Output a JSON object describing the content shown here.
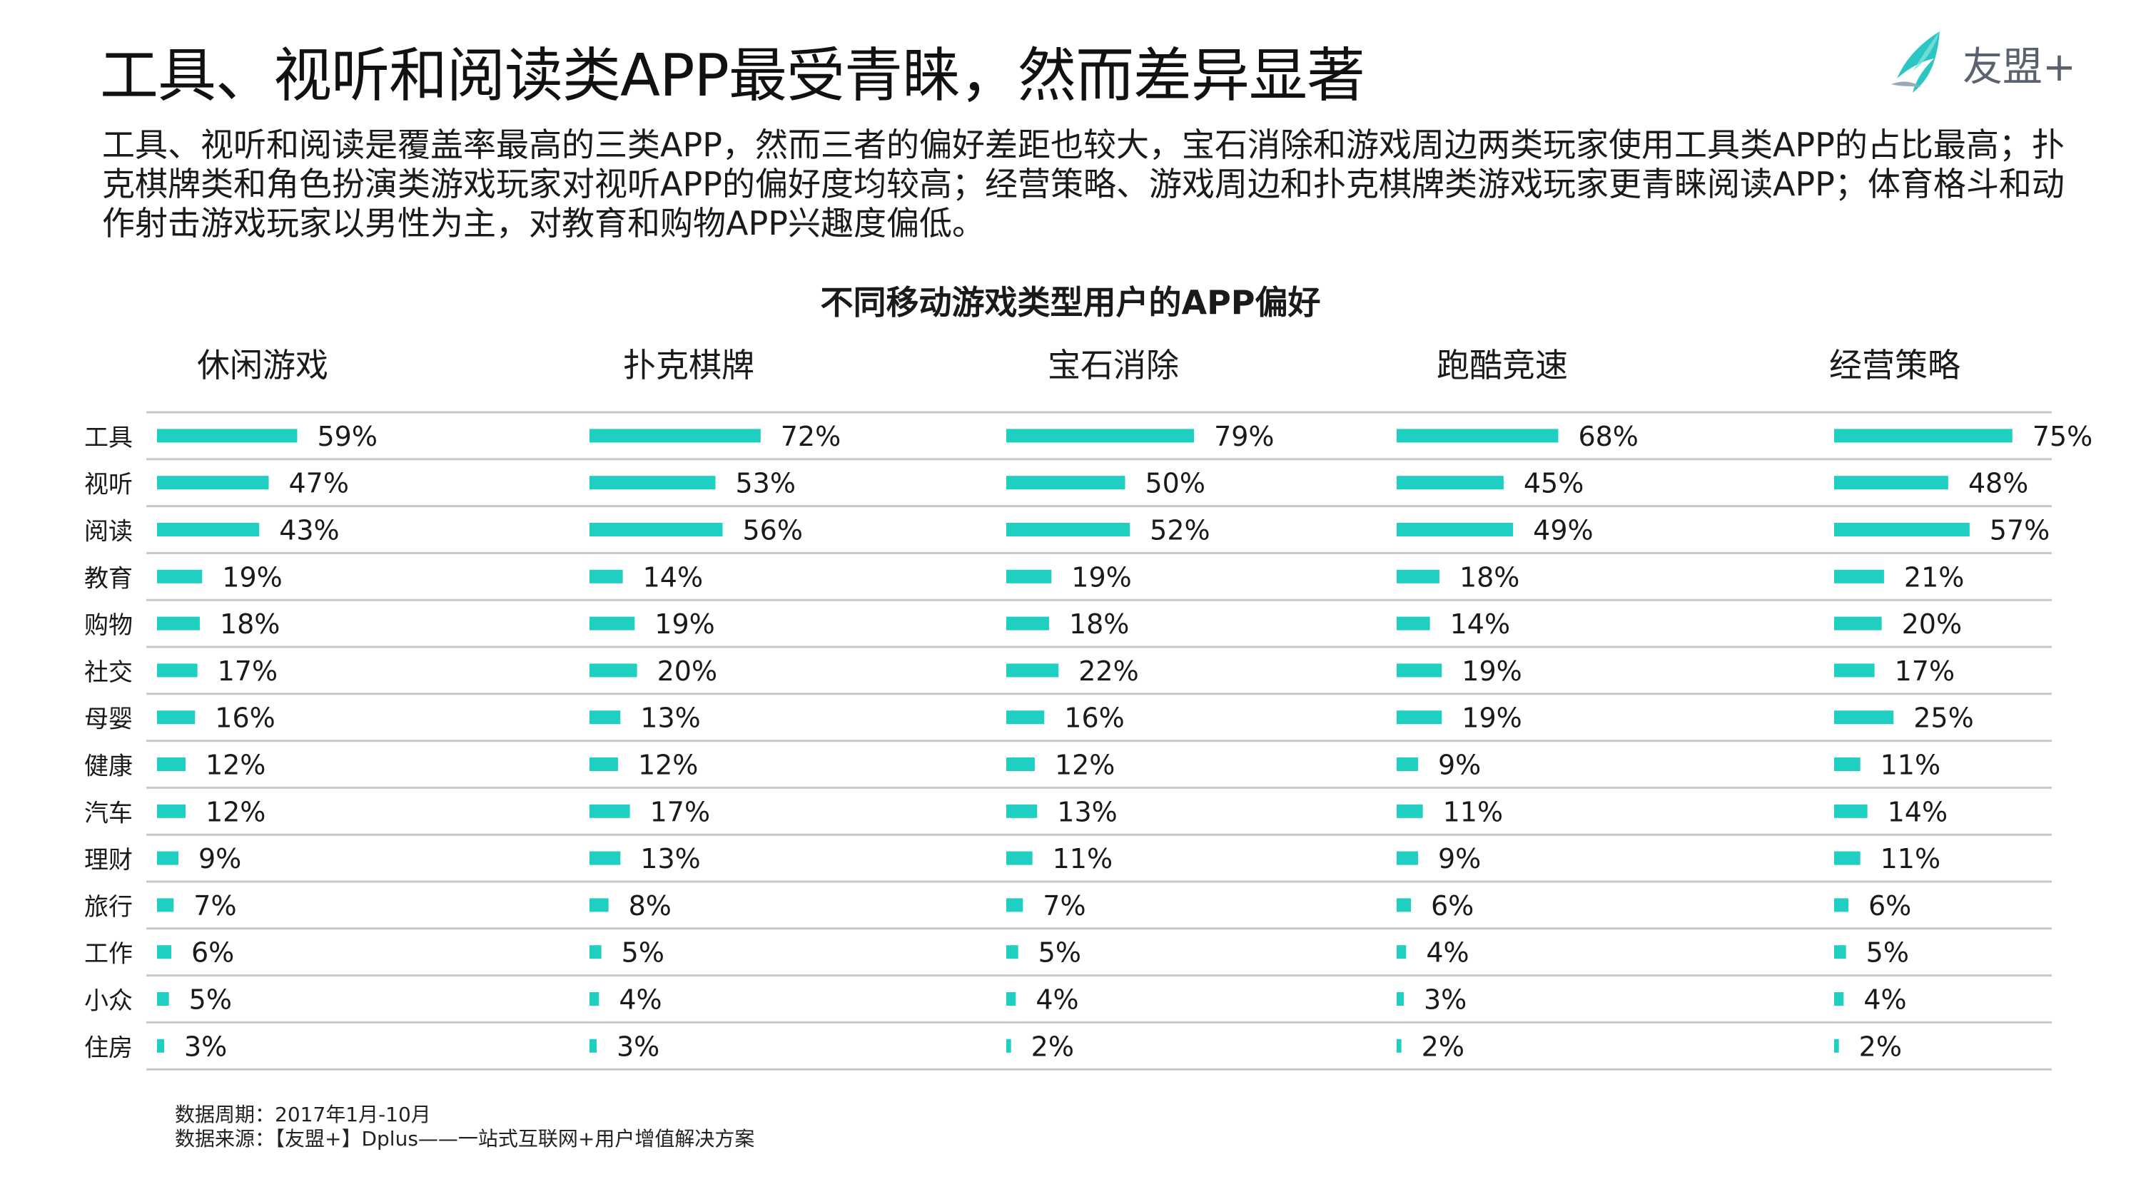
{
  "title": "工具、视听和阅读类APP最受青睐，然而差异显著",
  "logo": {
    "icon": "leaf-logo-icon",
    "text": "友盟+"
  },
  "intro": "工具、视听和阅读是覆盖率最高的三类APP，然而三者的偏好差距也较大，宝石消除和游戏周边两类玩家使用工具类APP的占比最高；扑克棋牌类和角色扮演类游戏玩家对视听APP的偏好度均较高；经营策略、游戏周边和扑克棋牌类游戏玩家更青睐阅读APP；体育格斗和动作射击游戏玩家以男性为主，对教育和购物APP兴趣度偏低。",
  "chart_data": {
    "type": "bar",
    "orientation": "horizontal",
    "title": "不同移动游戏类型用户的APP偏好",
    "categories": [
      "工具",
      "视听",
      "阅读",
      "教育",
      "购物",
      "社交",
      "母婴",
      "健康",
      "汽车",
      "理财",
      "旅行",
      "工作",
      "小众",
      "住房"
    ],
    "unit": "%",
    "xlim": [
      0,
      100
    ],
    "series": [
      {
        "name": "休闲游戏",
        "values": [
          59,
          47,
          43,
          19,
          18,
          17,
          16,
          12,
          12,
          9,
          7,
          6,
          5,
          3
        ]
      },
      {
        "name": "扑克棋牌",
        "values": [
          72,
          53,
          56,
          14,
          19,
          20,
          13,
          12,
          17,
          13,
          8,
          5,
          4,
          3
        ]
      },
      {
        "name": "宝石消除",
        "values": [
          79,
          50,
          52,
          19,
          18,
          22,
          16,
          12,
          13,
          11,
          7,
          5,
          4,
          2
        ]
      },
      {
        "name": "跑酷竞速",
        "values": [
          68,
          45,
          49,
          18,
          14,
          19,
          19,
          9,
          11,
          9,
          6,
          4,
          3,
          2
        ]
      },
      {
        "name": "经营策略",
        "values": [
          75,
          48,
          57,
          21,
          20,
          17,
          25,
          11,
          14,
          11,
          6,
          5,
          4,
          2
        ]
      }
    ],
    "bar_color": "#1ECFC2",
    "grid_color": "#c8c8c8"
  },
  "footnote": {
    "period": "数据周期：2017年1月-10月",
    "source": "数据来源：【友盟+】Dplus——一站式互联网+用户增值解决方案"
  }
}
